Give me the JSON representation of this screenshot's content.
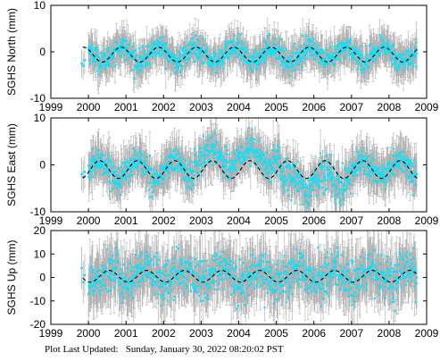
{
  "footer": {
    "label": "Plot Last Updated:",
    "timestamp": "Sunday, January 30, 2022 08:20:02 PST"
  },
  "colors": {
    "data_points": "#00e5ff",
    "error_bars": "#b0b0b0",
    "model_line": "#000000",
    "axes": "#000000"
  },
  "chart_data": [
    {
      "type": "scatter",
      "id": "north",
      "ylabel": "SGHS North (mm)",
      "xlim": [
        1999,
        2009
      ],
      "ylim": [
        -10,
        10
      ],
      "xticks": [
        1999,
        2000,
        2001,
        2002,
        2003,
        2004,
        2005,
        2006,
        2007,
        2008,
        2009
      ],
      "yticks": [
        -10,
        0,
        10
      ],
      "xticklabels": [
        "1999",
        "2000",
        "2001",
        "2002",
        "2003",
        "2004",
        "2005",
        "2006",
        "2007",
        "2008",
        "2009"
      ],
      "yticklabels": [
        "-10",
        "0",
        "10"
      ],
      "data_range": [
        1999.8,
        2008.75
      ],
      "model": {
        "amplitude": 1.6,
        "phase": 0.62,
        "offset": -0.6,
        "trend": 0.0
      },
      "scatter_sd": 1.2,
      "error_sd": 3.0,
      "points": [
        [
          1999.82,
          -2.5
        ],
        [
          1999.86,
          -3.0
        ],
        [
          1999.9,
          -1.8
        ]
      ]
    },
    {
      "type": "scatter",
      "id": "east",
      "ylabel": "SGHS East (mm)",
      "xlim": [
        1999,
        2009
      ],
      "ylim": [
        -10,
        10
      ],
      "xticks": [
        1999,
        2000,
        2001,
        2002,
        2003,
        2004,
        2005,
        2006,
        2007,
        2008,
        2009
      ],
      "yticks": [
        -10,
        0,
        10
      ],
      "xticklabels": [
        "1999",
        "2000",
        "2001",
        "2002",
        "2003",
        "2004",
        "2005",
        "2006",
        "2007",
        "2008",
        "2009"
      ],
      "yticklabels": [
        "-10",
        "0",
        "10"
      ],
      "data_range": [
        1999.8,
        2008.75
      ],
      "model": {
        "amplitude": 1.9,
        "phase": 0.05,
        "offset": -1.0,
        "trend": 0.0
      },
      "scatter_sd": 1.4,
      "error_sd": 3.5,
      "points": [
        [
          1999.82,
          -2.0
        ],
        [
          1999.86,
          -2.6
        ],
        [
          1999.9,
          -1.5
        ]
      ]
    },
    {
      "type": "scatter",
      "id": "up",
      "ylabel": "SGHS Up (mm)",
      "xlim": [
        1999,
        2009
      ],
      "ylim": [
        -20,
        20
      ],
      "xticks": [
        1999,
        2000,
        2001,
        2002,
        2003,
        2004,
        2005,
        2006,
        2007,
        2008,
        2009
      ],
      "yticks": [
        -20,
        -10,
        0,
        10,
        20
      ],
      "xticklabels": [
        "1999",
        "2000",
        "2001",
        "2002",
        "2003",
        "2004",
        "2005",
        "2006",
        "2007",
        "2008",
        "2009"
      ],
      "yticklabels": [
        "-20",
        "-10",
        "0",
        "10",
        "20"
      ],
      "data_range": [
        1999.8,
        2008.75
      ],
      "model": {
        "amplitude": 2.5,
        "phase": 0.3,
        "offset": 0.5,
        "trend": 0.0
      },
      "scatter_sd": 4.5,
      "error_sd": 9.0,
      "points": [
        [
          1999.82,
          4.0
        ],
        [
          1999.86,
          -2.0
        ],
        [
          1999.9,
          1.0
        ]
      ]
    }
  ]
}
